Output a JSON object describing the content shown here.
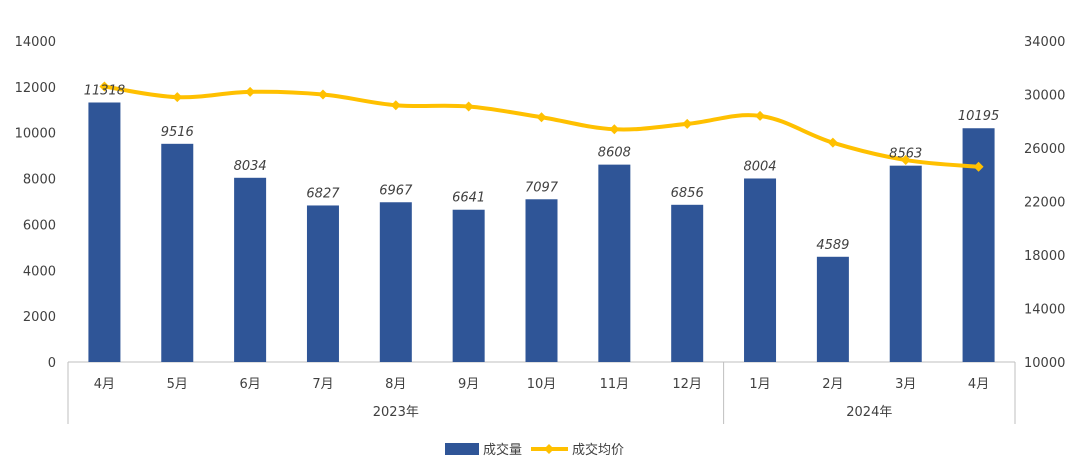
{
  "chart_data": {
    "type": "bar",
    "categories": [
      "4月",
      "5月",
      "6月",
      "7月",
      "8月",
      "9月",
      "10月",
      "11月",
      "12月",
      "1月",
      "2月",
      "3月",
      "4月"
    ],
    "groups": [
      {
        "label": "2023年",
        "count": 9
      },
      {
        "label": "2024年",
        "count": 4
      }
    ],
    "series": [
      {
        "name": "成交量",
        "type": "bar",
        "axis": "left",
        "color": "#2F5597",
        "values": [
          11318,
          9516,
          8034,
          6827,
          6967,
          6641,
          7097,
          8608,
          6856,
          8004,
          4589,
          8563,
          10195
        ]
      },
      {
        "name": "成交均价",
        "type": "line",
        "axis": "right",
        "color": "#FFC000",
        "values": [
          30600,
          29800,
          30200,
          30000,
          29200,
          29100,
          28300,
          27400,
          27800,
          28400,
          26400,
          25100,
          24600
        ]
      }
    ],
    "y_left": {
      "min": 0,
      "max": 14000,
      "ticks": [
        0,
        2000,
        4000,
        6000,
        8000,
        10000,
        12000,
        14000
      ]
    },
    "y_right": {
      "min": 10000,
      "max": 34000,
      "ticks": [
        10000,
        14000,
        18000,
        22000,
        26000,
        30000,
        34000
      ]
    },
    "grid": false,
    "legend_position": "bottom"
  }
}
